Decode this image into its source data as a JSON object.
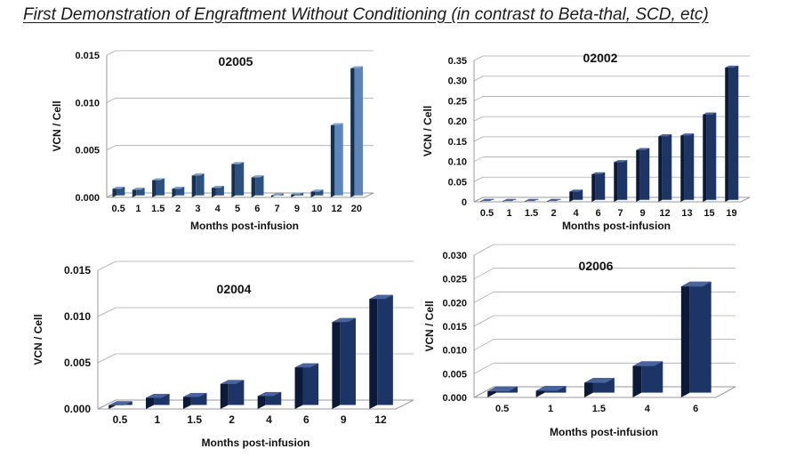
{
  "page": {
    "title": "First Demonstration  of Engraftment  Without Conditioning  (in contrast to Beta-thal, SCD, etc)"
  },
  "colors": {
    "bar_front": "#2b5183",
    "bar_light": "#5b86bd",
    "bar_side": "#16304f",
    "bar_top": "#7fa2cf",
    "bar_navy_front": "#1d3466",
    "bar_navy_side": "#0c1a3a",
    "bar_navy_top": "#4a64a0",
    "axis": "#9a9a9a",
    "grid": "#aaaaaa"
  },
  "chart_data": [
    {
      "id": "c02005",
      "type": "bar",
      "title": "02005",
      "xlabel": "Months post-infusion",
      "ylabel": "VCN / Cell",
      "categories": [
        "0.5",
        "1",
        "1.5",
        "2",
        "3",
        "4",
        "5",
        "6",
        "7",
        "9",
        "10",
        "12",
        "20"
      ],
      "values": [
        0.0009,
        0.0008,
        0.0018,
        0.0009,
        0.0023,
        0.001,
        0.0035,
        0.0021,
        0.0002,
        0.0003,
        0.0006,
        0.0076,
        0.0136
      ],
      "ylim": [
        0,
        0.015
      ],
      "yticks": [
        "0.000",
        "0.005",
        "0.010",
        "0.015"
      ],
      "ytick_values": [
        0,
        0.005,
        0.01,
        0.015
      ],
      "grid": true
    },
    {
      "id": "c02002",
      "type": "bar",
      "title": "02002",
      "xlabel": "Months post-infusion",
      "ylabel": "VCN / Cell",
      "categories": [
        "0.5",
        "1",
        "1.5",
        "2",
        "4",
        "6",
        "7",
        "9",
        "12",
        "13",
        "15",
        "19"
      ],
      "values": [
        0.002,
        0.002,
        0.002,
        0.002,
        0.025,
        0.068,
        0.098,
        0.128,
        0.162,
        0.164,
        0.216,
        0.332
      ],
      "ylim": [
        0,
        0.35
      ],
      "yticks": [
        "0",
        "0.05",
        "0.10",
        "0.15",
        "0.20",
        "0.25",
        "0.30",
        "0.35"
      ],
      "ytick_values": [
        0,
        0.05,
        0.1,
        0.15,
        0.2,
        0.25,
        0.3,
        0.35
      ],
      "grid": true
    },
    {
      "id": "c02004",
      "type": "bar",
      "title": "02004",
      "xlabel": "Months post-infusion",
      "ylabel": "VCN / Cell",
      "categories": [
        "0.5",
        "1",
        "1.5",
        "2",
        "4",
        "6",
        "9",
        "12"
      ],
      "values": [
        0.0004,
        0.0012,
        0.0013,
        0.0027,
        0.0014,
        0.0045,
        0.0094,
        0.0119
      ],
      "ylim": [
        0,
        0.015
      ],
      "yticks": [
        "0.000",
        "0.005",
        "0.010",
        "0.015"
      ],
      "ytick_values": [
        0,
        0.005,
        0.01,
        0.015
      ],
      "grid": true
    },
    {
      "id": "c02006",
      "type": "bar",
      "title": "02006",
      "xlabel": "Months post-infusion",
      "ylabel": "VCN / Cell",
      "categories": [
        "0.5",
        "1",
        "1.5",
        "4",
        "6"
      ],
      "values": [
        0.0013,
        0.0014,
        0.0031,
        0.0066,
        0.0234
      ],
      "ylim": [
        0,
        0.03
      ],
      "yticks": [
        "0.000",
        "0.005",
        "0.010",
        "0.015",
        "0.020",
        "0.025",
        "0.030"
      ],
      "ytick_values": [
        0,
        0.005,
        0.01,
        0.015,
        0.02,
        0.025,
        0.03
      ],
      "grid": true
    }
  ]
}
